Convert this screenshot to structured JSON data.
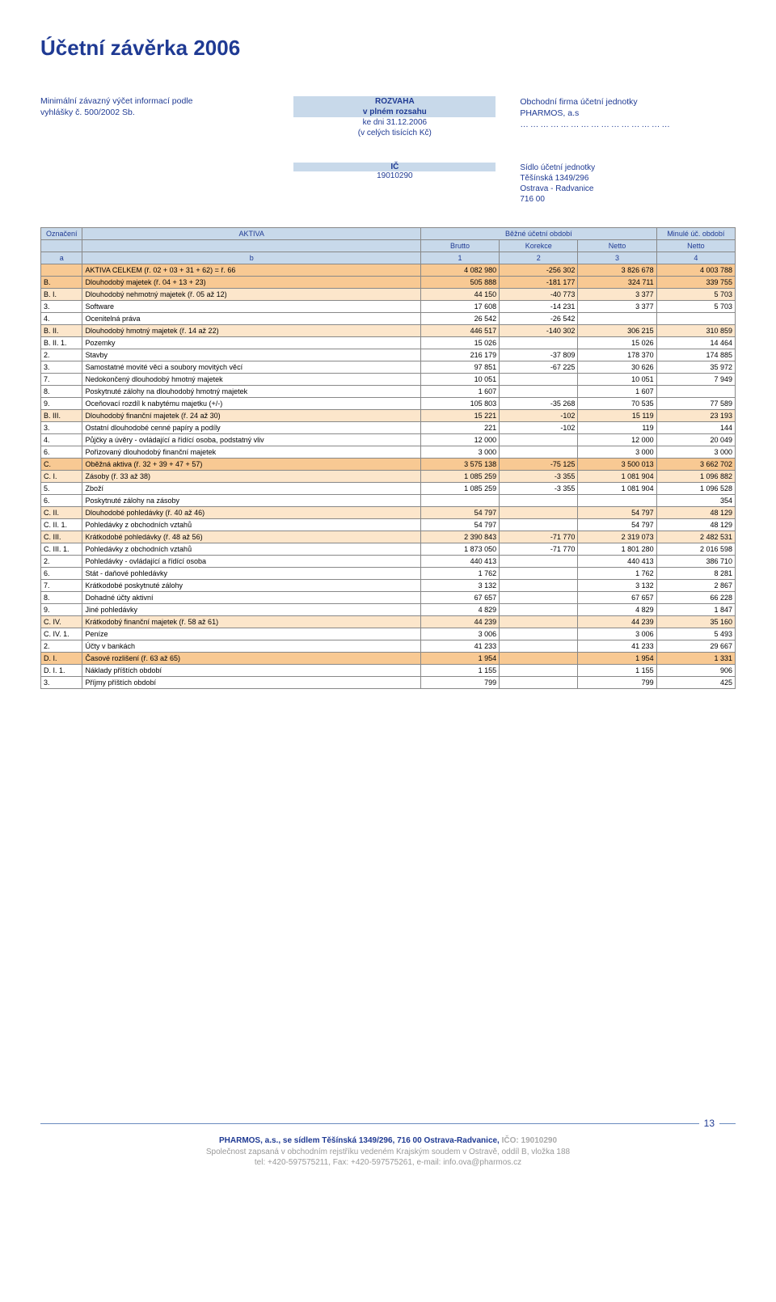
{
  "page_title": "Účetní závěrka 2006",
  "intro": {
    "left_l1": "Minimální závazný výčet informací podle",
    "left_l2": "vyhlášky č. 500/2002 Sb.",
    "center_l1": "ROZVAHA",
    "center_l2": "v plném rozsahu",
    "center_l3": "ke dni  31.12.2006",
    "center_l4": "(v celých tisících Kč)",
    "right_l1": "Obchodní firma účetní jednotky",
    "right_l2": "PHARMOS, a.s",
    "dots": "………………………………………"
  },
  "ic_block": {
    "ic_title": "IČ",
    "ic_value": "19010290",
    "r1": "Sídlo účetní jednotky",
    "r2": "Těšínská 1349/296",
    "r3": "Ostrava - Radvanice",
    "r4": "716 00"
  },
  "table": {
    "headers": {
      "h1_c1": "Označení",
      "h1_c2": "AKTIVA",
      "h1_c3": "Běžné účetní období",
      "h1_c4": "Minulé úč. období",
      "h2_c3": "Brutto",
      "h2_c4": "Korekce",
      "h2_c5": "Netto",
      "h2_c6": "Netto",
      "h3_c1": "a",
      "h3_c2": "b",
      "h3_c3": "1",
      "h3_c4": "2",
      "h3_c5": "3",
      "h3_c6": "4"
    },
    "rows": [
      {
        "cls": "rowA",
        "c0": "",
        "c1": "AKTIVA CELKEM                                  (ř. 02 + 03 + 31 + 62) = ř. 66",
        "c2": "4 082 980",
        "c3": "-256 302",
        "c4": "3 826 678",
        "c5": "4 003 788"
      },
      {
        "cls": "rowA",
        "c0": "B.",
        "c1": "Dlouhodobý majetek                                                          (ř. 04 + 13 + 23)",
        "c2": "505 888",
        "c3": "-181 177",
        "c4": "324 711",
        "c5": "339 755"
      },
      {
        "cls": "rowB",
        "c0": "B. I.",
        "c1": "Dlouhodobý nehmotný majetek                                                  (ř. 05 až 12)",
        "c2": "44 150",
        "c3": "-40 773",
        "c4": "3 377",
        "c5": "5 703"
      },
      {
        "cls": "rowW",
        "c0": "3.",
        "c1": "Software",
        "c2": "17 608",
        "c3": "-14 231",
        "c4": "3 377",
        "c5": "5 703"
      },
      {
        "cls": "rowW",
        "c0": "4.",
        "c1": "Ocenitelná práva",
        "c2": "26 542",
        "c3": "-26 542",
        "c4": "",
        "c5": ""
      },
      {
        "cls": "rowB",
        "c0": "B. II.",
        "c1": "Dlouhodobý hmotný majetek                                                       (ř. 14 až 22)",
        "c2": "446 517",
        "c3": "-140 302",
        "c4": "306 215",
        "c5": "310 859"
      },
      {
        "cls": "rowW",
        "c0": "B. II. 1.",
        "c1": "Pozemky",
        "c2": "15 026",
        "c3": "",
        "c4": "15 026",
        "c5": "14 464"
      },
      {
        "cls": "rowW",
        "c0": "2.",
        "c1": "Stavby",
        "c2": "216 179",
        "c3": "-37 809",
        "c4": "178 370",
        "c5": "174 885"
      },
      {
        "cls": "rowW",
        "c0": "3.",
        "c1": "Samostatné movité věci a soubory movitých věcí",
        "c2": "97 851",
        "c3": "-67 225",
        "c4": "30 626",
        "c5": "35 972"
      },
      {
        "cls": "rowW",
        "c0": "7.",
        "c1": "Nedokončený dlouhodobý hmotný majetek",
        "c2": "10 051",
        "c3": "",
        "c4": "10 051",
        "c5": "7 949"
      },
      {
        "cls": "rowW",
        "c0": "8.",
        "c1": "Poskytnuté zálohy na dlouhodobý hmotný majetek",
        "c2": "1 607",
        "c3": "",
        "c4": "1 607",
        "c5": ""
      },
      {
        "cls": "rowW",
        "c0": "9.",
        "c1": "Oceňovací rozdíl k nabytému majetku (+/-)",
        "c2": "105 803",
        "c3": "-35 268",
        "c4": "70 535",
        "c5": "77 589"
      },
      {
        "cls": "rowB",
        "c0": "B. III.",
        "c1": "Dlouhodobý finanční majetek                                                   (ř. 24 až 30)",
        "c2": "15 221",
        "c3": "-102",
        "c4": "15 119",
        "c5": "23 193"
      },
      {
        "cls": "rowW",
        "c0": "3.",
        "c1": "Ostatní dlouhodobé cenné papíry a podíly",
        "c2": "221",
        "c3": "-102",
        "c4": "119",
        "c5": "144"
      },
      {
        "cls": "rowW",
        "c0": "4.",
        "c1": "Půjčky a úvěry - ovládající a řídící osoba, podstatný vliv",
        "c2": "12 000",
        "c3": "",
        "c4": "12 000",
        "c5": "20 049"
      },
      {
        "cls": "rowW",
        "c0": "6.",
        "c1": "Pořizovaný dlouhodobý finanční majetek",
        "c2": "3 000",
        "c3": "",
        "c4": "3 000",
        "c5": "3 000"
      },
      {
        "cls": "rowA",
        "c0": "C.",
        "c1": "Oběžná aktiva                                                     (ř. 32 + 39 + 47 + 57)",
        "c2": "3 575 138",
        "c3": "-75 125",
        "c4": "3 500 013",
        "c5": "3 662 702"
      },
      {
        "cls": "rowB",
        "c0": "C. I.",
        "c1": "Zásoby                                                                                     (ř. 33 až 38)",
        "c2": "1 085 259",
        "c3": "-3 355",
        "c4": "1 081 904",
        "c5": "1 096 882"
      },
      {
        "cls": "rowW",
        "c0": "5.",
        "c1": "Zboží",
        "c2": "1 085 259",
        "c3": "-3 355",
        "c4": "1 081 904",
        "c5": "1 096 528"
      },
      {
        "cls": "rowW",
        "c0": "6.",
        "c1": "Poskytnuté zálohy na zásoby",
        "c2": "",
        "c3": "",
        "c4": "",
        "c5": "354"
      },
      {
        "cls": "rowB",
        "c0": "C. II.",
        "c1": "Dlouhodobé pohledávky                                                            (ř. 40 až 46)",
        "c2": "54 797",
        "c3": "",
        "c4": "54 797",
        "c5": "48 129"
      },
      {
        "cls": "rowW",
        "c0": "C. II. 1.",
        "c1": "Pohledávky z obchodních vztahů",
        "c2": "54 797",
        "c3": "",
        "c4": "54 797",
        "c5": "48 129"
      },
      {
        "cls": "rowB",
        "c0": "C. III.",
        "c1": "Krátkodobé pohledávky                                                            (ř. 48 až 56)",
        "c2": "2 390 843",
        "c3": "-71 770",
        "c4": "2 319 073",
        "c5": "2 482 531"
      },
      {
        "cls": "rowW",
        "c0": "C. III. 1.",
        "c1": "Pohledávky z obchodních vztahů",
        "c2": "1 873 050",
        "c3": "-71 770",
        "c4": "1 801 280",
        "c5": "2 016 598"
      },
      {
        "cls": "rowW",
        "c0": "2.",
        "c1": "Pohledávky - ovládající a řídící osoba",
        "c2": "440 413",
        "c3": "",
        "c4": "440 413",
        "c5": "386 710"
      },
      {
        "cls": "rowW",
        "c0": "6.",
        "c1": "Stát - daňové pohledávky",
        "c2": "1 762",
        "c3": "",
        "c4": "1 762",
        "c5": "8 281"
      },
      {
        "cls": "rowW",
        "c0": "7.",
        "c1": "Krátkodobé poskytnuté zálohy",
        "c2": "3 132",
        "c3": "",
        "c4": "3 132",
        "c5": "2 867"
      },
      {
        "cls": "rowW",
        "c0": "8.",
        "c1": "Dohadné účty aktivní",
        "c2": "67 657",
        "c3": "",
        "c4": "67 657",
        "c5": "66 228"
      },
      {
        "cls": "rowW",
        "c0": "9.",
        "c1": "Jiné pohledávky",
        "c2": "4 829",
        "c3": "",
        "c4": "4 829",
        "c5": "1 847"
      },
      {
        "cls": "rowB",
        "c0": "C. IV.",
        "c1": "Krátkodobý finanční majetek                                                (ř. 58 až 61)",
        "c2": "44 239",
        "c3": "",
        "c4": "44 239",
        "c5": "35 160"
      },
      {
        "cls": "rowW",
        "c0": "C. IV. 1.",
        "c1": "Peníze",
        "c2": "3 006",
        "c3": "",
        "c4": "3 006",
        "c5": "5 493"
      },
      {
        "cls": "rowW",
        "c0": "2.",
        "c1": "Účty v bankách",
        "c2": "41 233",
        "c3": "",
        "c4": "41 233",
        "c5": "29 667"
      },
      {
        "cls": "rowA",
        "c0": "D. I.",
        "c1": "Časové rozlišení                                                                     (ř. 63 až 65)",
        "c2": "1 954",
        "c3": "",
        "c4": "1 954",
        "c5": "1 331"
      },
      {
        "cls": "rowW",
        "c0": "D. I. 1.",
        "c1": "Náklady příštích období",
        "c2": "1 155",
        "c3": "",
        "c4": "1 155",
        "c5": "906"
      },
      {
        "cls": "rowW",
        "c0": "3.",
        "c1": "Příjmy příštích období",
        "c2": "799",
        "c3": "",
        "c4": "799",
        "c5": "425"
      }
    ]
  },
  "footer": {
    "page_no": "13",
    "l1a": "PHARMOS, a.s., se sídlem Těšínská 1349/296, 716 00 Ostrava-Radvanice, ",
    "l1b": "IČO: 19010290",
    "l2": "Společnost zapsaná v obchodním rejstříku vedeném Krajským soudem v Ostravě, oddíl B, vložka 188",
    "l3": "tel: +420-597575211, Fax: +420-597575261, e-mail: info.ova@pharmos.cz"
  }
}
